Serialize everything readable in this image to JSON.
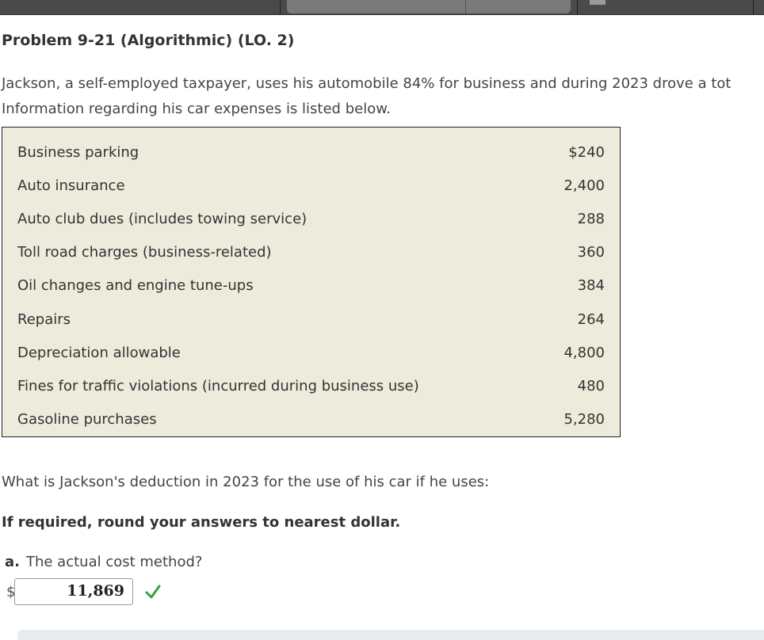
{
  "problem": {
    "title": "Problem 9-21 (Algorithmic) (LO. 2)",
    "intro_line1": "Jackson, a self-employed taxpayer, uses his automobile 84% for business and during 2023 drove a tot",
    "intro_line2": "Information regarding his car expenses is listed below."
  },
  "expenses": [
    {
      "label": "Business parking",
      "amount": "$240"
    },
    {
      "label": "Auto insurance",
      "amount": "2,400"
    },
    {
      "label": "Auto club dues (includes towing service)",
      "amount": "288"
    },
    {
      "label": "Toll road charges (business-related)",
      "amount": "360"
    },
    {
      "label": "Oil changes and engine tune-ups",
      "amount": "384"
    },
    {
      "label": "Repairs",
      "amount": "264"
    },
    {
      "label": "Depreciation allowable",
      "amount": "4,800"
    },
    {
      "label": "Fines for traffic violations (incurred during business use)",
      "amount": "480"
    },
    {
      "label": "Gasoline purchases",
      "amount": "5,280"
    }
  ],
  "question": "What is Jackson's deduction in 2023 for the use of his car if he uses:",
  "instruction": "If required, round your answers to nearest dollar.",
  "part_a": {
    "letter": "a.",
    "text": "The actual cost method?",
    "currency_symbol": "$",
    "answer_value": "11,869",
    "status_icon": "check-icon",
    "status_color": "#3aa13a"
  },
  "colors": {
    "table_background": "#edebdb",
    "topbar": "#4a4a4a"
  }
}
